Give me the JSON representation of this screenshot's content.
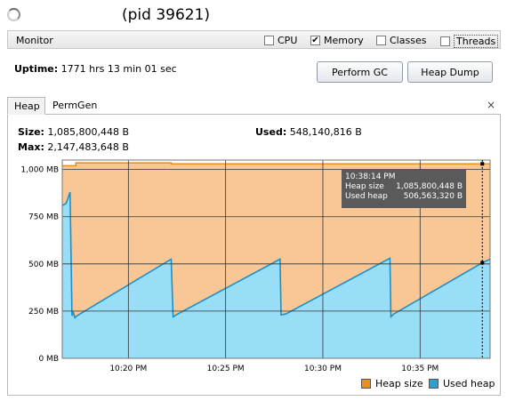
{
  "header": {
    "title": "(pid 39621)"
  },
  "monitor": {
    "label": "Monitor",
    "checkboxes": [
      {
        "label": "CPU",
        "checked": false
      },
      {
        "label": "Memory",
        "checked": true
      },
      {
        "label": "Classes",
        "checked": false
      },
      {
        "label": "Threads",
        "checked": false
      }
    ]
  },
  "uptime": {
    "label": "Uptime:",
    "value": "1771 hrs 13 min 01 sec"
  },
  "buttons": {
    "gc": "Perform GC",
    "dump": "Heap Dump"
  },
  "tabs": [
    {
      "label": "Heap",
      "active": true
    },
    {
      "label": "PermGen",
      "active": false
    }
  ],
  "tab_close": "×",
  "heap": {
    "size_label": "Size:",
    "size_value": "1,085,800,448 B",
    "max_label": "Max:",
    "max_value": "2,147,483,648 B",
    "used_label": "Used:",
    "used_value": "548,140,816 B"
  },
  "tooltip": {
    "time": "10:38:14 PM",
    "rows": [
      {
        "label": "Heap size",
        "value": "1,085,800,448 B"
      },
      {
        "label": "Used heap",
        "value": "506,563,320 B"
      }
    ]
  },
  "chart_data": {
    "type": "area",
    "title": "",
    "xlabel": "",
    "ylabel": "",
    "y_unit": "MB",
    "ylim": [
      0,
      1050
    ],
    "yticks": [
      0,
      250,
      500,
      750,
      1000
    ],
    "ytick_labels": [
      "0 MB",
      "250 MB",
      "500 MB",
      "750 MB",
      "1,000 MB"
    ],
    "x_unit": "minutes after 10:00 PM",
    "xlim": [
      16.6,
      38.6
    ],
    "xticks": [
      20,
      25,
      30,
      35
    ],
    "xtick_labels": [
      "10:20 PM",
      "10:25 PM",
      "10:30 PM",
      "10:35 PM"
    ],
    "legend": "bottom-right",
    "series": [
      {
        "name": "Heap size",
        "color": "#f8c795",
        "line_color": "#e8901e",
        "x": [
          16.6,
          17.3,
          17.3,
          22.2,
          22.2,
          38.6
        ],
        "y": [
          1020,
          1020,
          1035,
          1035,
          1030,
          1030
        ]
      },
      {
        "name": "Used heap",
        "color": "#99def7",
        "line_color": "#1e90c8",
        "x": [
          16.6,
          16.8,
          17.0,
          17.05,
          17.1,
          17.15,
          17.25,
          17.35,
          22.2,
          22.3,
          22.45,
          27.8,
          27.85,
          28.1,
          33.45,
          33.5,
          33.65,
          38.2,
          38.6
        ],
        "y": [
          810,
          820,
          880,
          560,
          225,
          250,
          215,
          225,
          525,
          220,
          230,
          525,
          230,
          235,
          530,
          220,
          235,
          506,
          525
        ]
      }
    ],
    "cursor_x": 38.2
  },
  "legend_items": [
    {
      "label": "Heap size",
      "color": "#e8901e"
    },
    {
      "label": "Used heap",
      "color": "#2ba1d3"
    }
  ]
}
